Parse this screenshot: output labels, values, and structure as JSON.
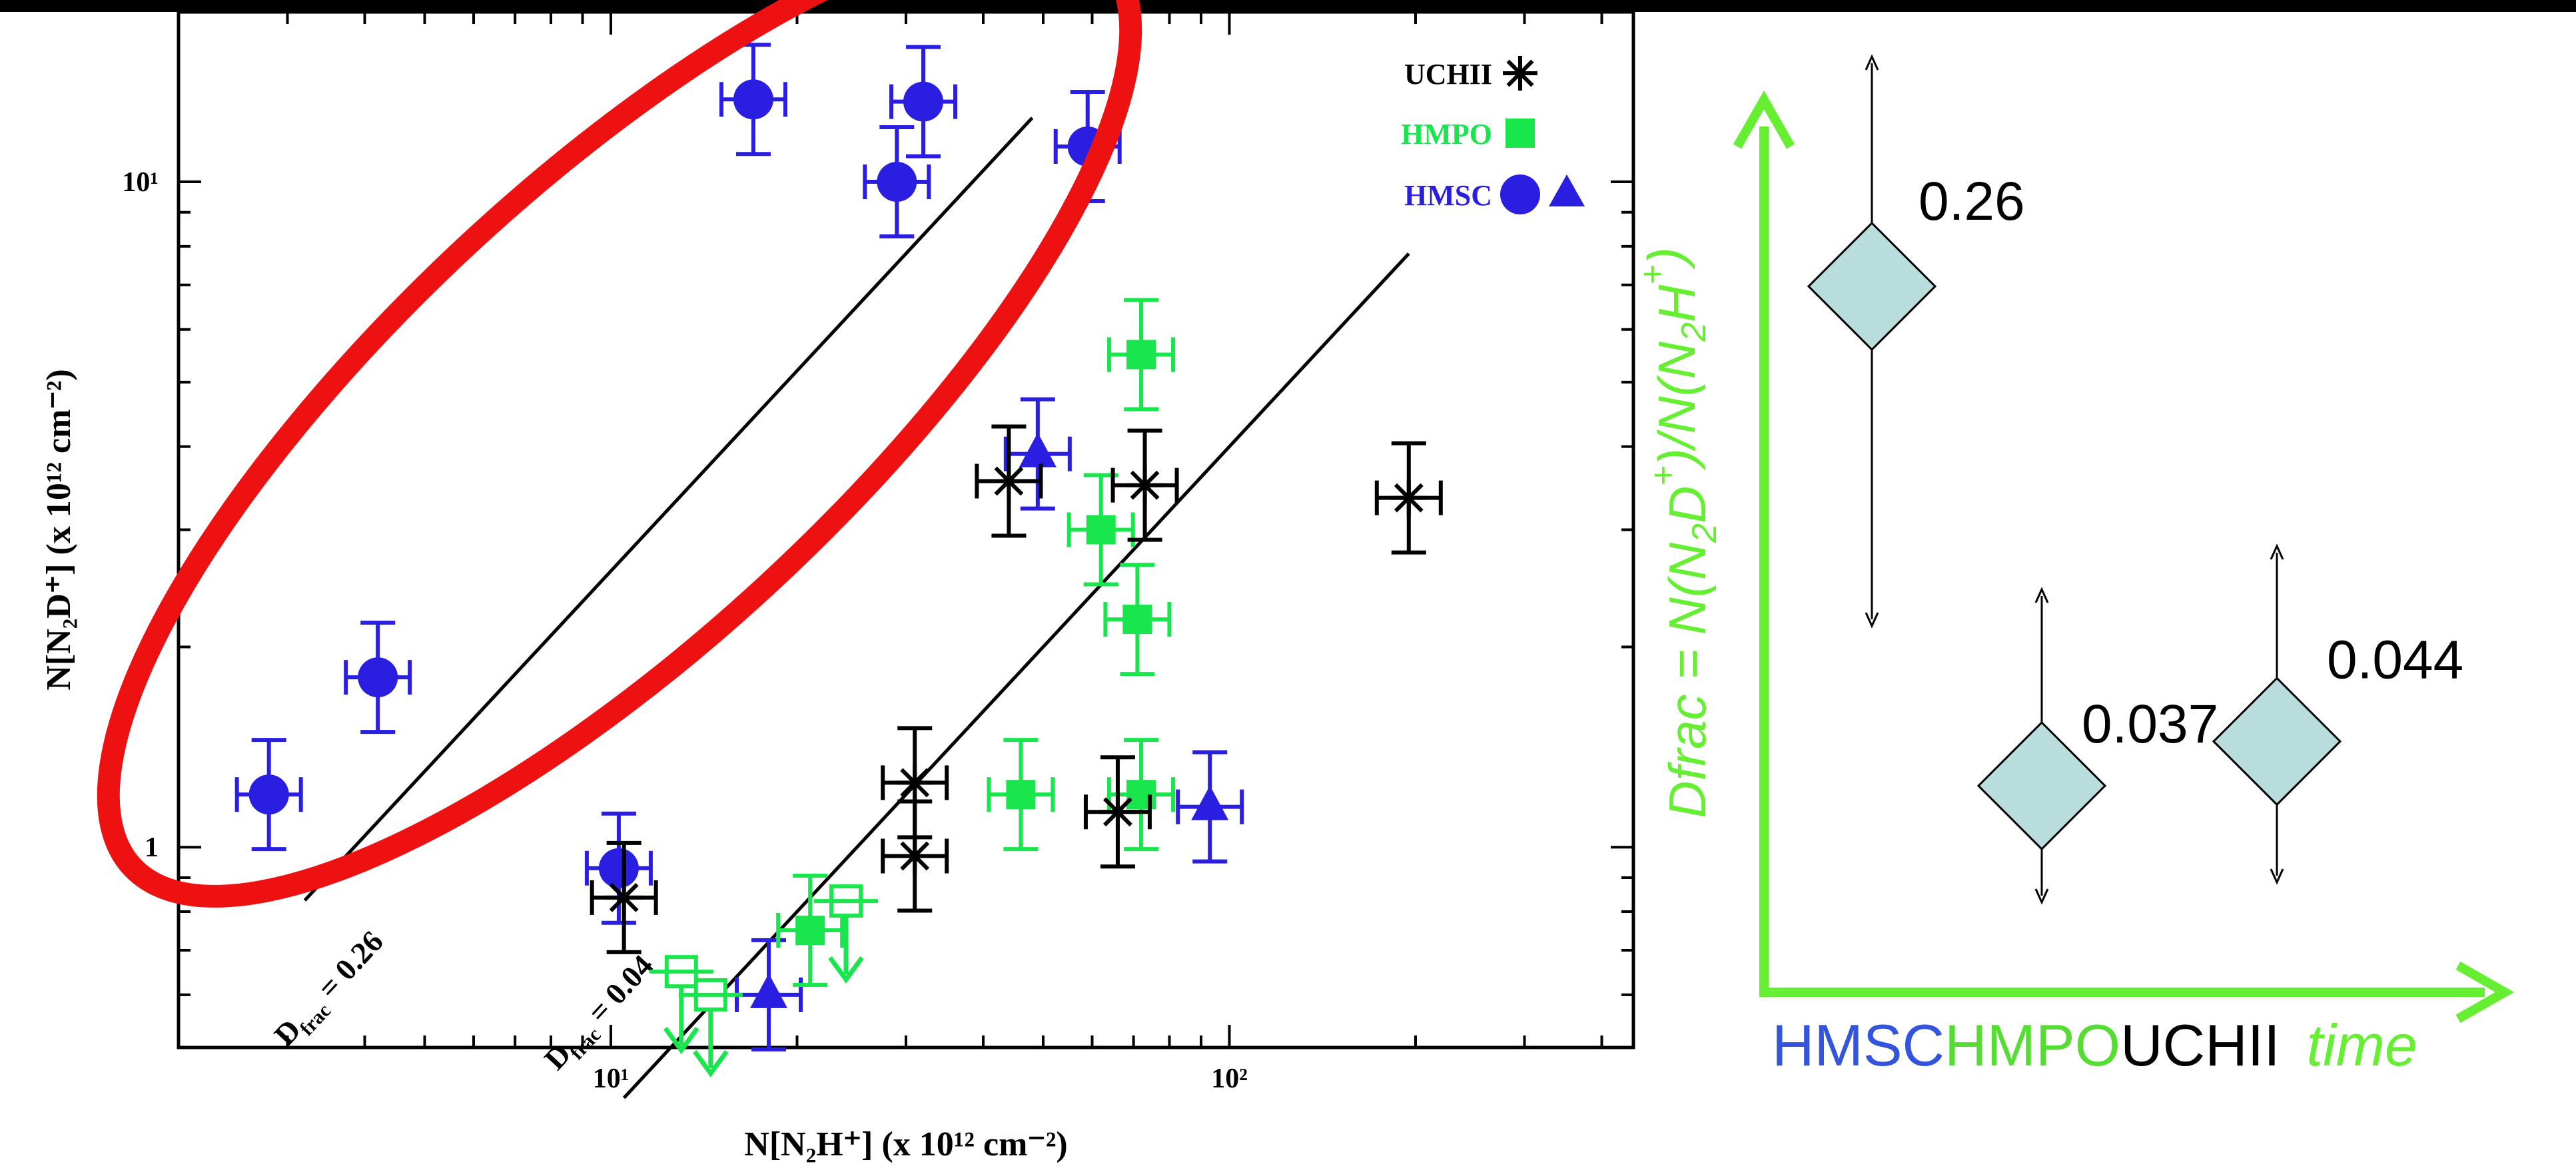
{
  "chart_data": [
    {
      "type": "scatter",
      "xscale": "log",
      "yscale": "log",
      "xlim": [
        2,
        450
      ],
      "ylim": [
        0.5,
        18
      ],
      "xlabel": "N[N₂H⁺] (x 10¹² cm⁻²)",
      "ylabel": "N[N₂D⁺] (x 10¹² cm⁻²)",
      "xticks": [
        {
          "value": 10,
          "label": "10¹"
        },
        {
          "value": 100,
          "label": "10²"
        }
      ],
      "yticks": [
        {
          "value": 1,
          "label": "1"
        },
        {
          "value": 10,
          "label": "10¹"
        }
      ],
      "legend_position": "top-right",
      "legend": [
        {
          "label": "UCHII",
          "color": "#000000",
          "symbols": [
            "asterisk"
          ]
        },
        {
          "label": "HMPO",
          "color": "#19e64d",
          "symbols": [
            "square"
          ]
        },
        {
          "label": "HMSC",
          "color": "#2a1fe0",
          "symbols": [
            "circle",
            "triangle"
          ]
        }
      ],
      "reference_lines": [
        {
          "label": "D",
          "label_sub": "frac",
          "label_value": "= 0.26",
          "ratio": 0.26,
          "x_range": [
            3.2,
            48
          ]
        },
        {
          "label": "D",
          "label_sub": "frac",
          "label_value": "= 0.04",
          "ratio": 0.04,
          "x_range": [
            10.5,
            195
          ]
        }
      ],
      "highlight": {
        "shape": "ellipse",
        "color": "#ee1111"
      },
      "series": [
        {
          "group": "HMSC",
          "marker": "circle",
          "color": "#2a1fe0",
          "points": [
            {
              "x": 17,
              "y": 13.3
            },
            {
              "x": 32,
              "y": 13.2
            },
            {
              "x": 29,
              "y": 10
            },
            {
              "x": 59,
              "y": 11.3
            },
            {
              "x": 4.2,
              "y": 1.8
            },
            {
              "x": 2.8,
              "y": 1.2
            },
            {
              "x": 10.3,
              "y": 0.93
            }
          ]
        },
        {
          "group": "HMSC",
          "marker": "triangle",
          "color": "#2a1fe0",
          "points": [
            {
              "x": 49,
              "y": 3.9
            },
            {
              "x": 93,
              "y": 1.15
            },
            {
              "x": 18,
              "y": 0.6
            }
          ]
        },
        {
          "group": "HMPO",
          "marker": "square",
          "color": "#19e64d",
          "points": [
            {
              "x": 72,
              "y": 5.5
            },
            {
              "x": 62,
              "y": 3.0
            },
            {
              "x": 71,
              "y": 2.2
            },
            {
              "x": 46,
              "y": 1.2
            },
            {
              "x": 72,
              "y": 1.2
            },
            {
              "x": 21,
              "y": 0.75
            }
          ]
        },
        {
          "group": "HMPO",
          "marker": "open-square-upper-limit",
          "color": "#19e64d",
          "points": [
            {
              "x": 24,
              "y": 0.83
            },
            {
              "x": 13,
              "y": 0.65
            },
            {
              "x": 14.5,
              "y": 0.6
            }
          ]
        },
        {
          "group": "UCHII",
          "marker": "asterisk",
          "color": "#000000",
          "points": [
            {
              "x": 44,
              "y": 3.55
            },
            {
              "x": 73,
              "y": 3.5
            },
            {
              "x": 195,
              "y": 3.35
            },
            {
              "x": 31,
              "y": 1.25
            },
            {
              "x": 66,
              "y": 1.13
            },
            {
              "x": 31,
              "y": 0.97
            },
            {
              "x": 10.5,
              "y": 0.84
            }
          ]
        }
      ]
    },
    {
      "type": "scatter",
      "xlabel": "time",
      "ylabel_parts": [
        "Dfrac =  N(N",
        "2",
        "D",
        "+",
        ")/N(N",
        "2",
        "H",
        "+",
        ")"
      ],
      "categories": [
        {
          "label": "HMSC",
          "color": "#3355dd"
        },
        {
          "label": "HMPO",
          "color": "#55dd33"
        },
        {
          "label": "UCHII",
          "color": "#000000"
        }
      ],
      "points": [
        {
          "category": "HMSC",
          "value": 0.26,
          "label": "0.26"
        },
        {
          "category": "HMPO",
          "value": 0.037,
          "label": "0.037"
        },
        {
          "category": "UCHII",
          "value": 0.044,
          "label": "0.044"
        }
      ],
      "axis_color": "#66ee33",
      "marker_color": "#b9dcdc"
    }
  ]
}
